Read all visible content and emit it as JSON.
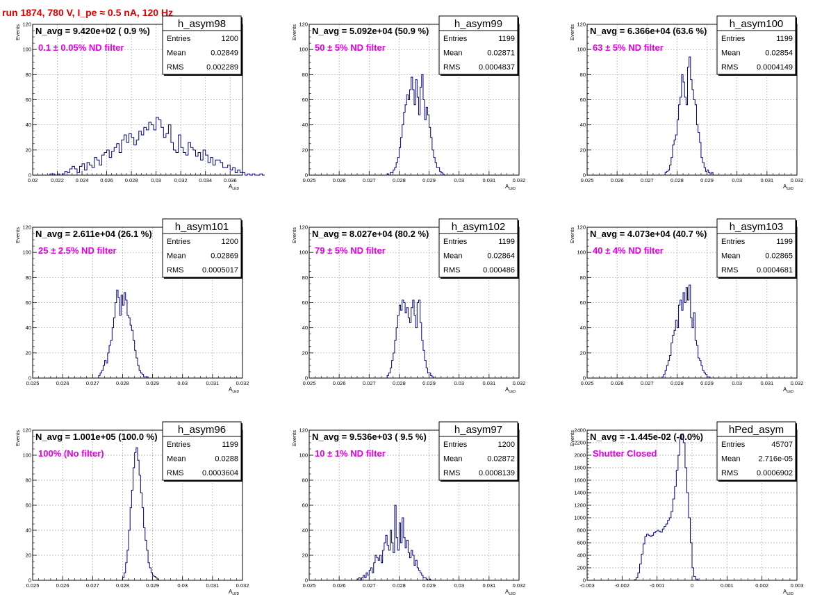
{
  "page": {
    "title": "run 1874,   780 V, I_pe ≈ 0.5 nA, 120 Hz"
  },
  "colors": {
    "histogram": "#000080",
    "annotation": "#e000e0",
    "title": "#e00000",
    "grid": "#aaaaaa",
    "axis": "#000000"
  },
  "chart_data": [
    {
      "type": "bar",
      "name": "h_asym98",
      "ylabel": "Events",
      "xlabel": "A",
      "xlabel_sub": "LED",
      "xlim": [
        0.02,
        0.037
      ],
      "ylim": [
        0,
        120
      ],
      "xticks": [
        0.02,
        0.022,
        0.024,
        0.026,
        0.028,
        0.03,
        0.032,
        0.034,
        0.036
      ],
      "xtick_labels": [
        "0.02",
        "0.022",
        "0.024",
        "0.026",
        "0.028",
        "0.03",
        "0.032",
        "0.034",
        "0.036"
      ],
      "yticks": [
        0,
        20,
        40,
        60,
        80,
        100,
        120
      ],
      "ytick_labels": [
        "0",
        "20",
        "40",
        "60",
        "80",
        "100",
        "120"
      ],
      "header": "N_avg = 9.420e+02 ( 0.9 %)",
      "annotation": "0.1 ± 0.05% ND filter",
      "stats": {
        "title": "h_asym98",
        "rows": [
          [
            "Entries",
            "1200"
          ],
          [
            "Mean",
            "0.02849"
          ],
          [
            "RMS",
            "0.002289"
          ]
        ]
      },
      "bins": {
        "x0": 0.0214,
        "w": 0.0002,
        "counts": [
          1,
          1,
          0,
          1,
          0,
          1,
          3,
          2,
          5,
          7,
          5,
          2,
          7,
          9,
          4,
          10,
          8,
          6,
          14,
          12,
          8,
          16,
          18,
          20,
          14,
          19,
          22,
          25,
          18,
          28,
          32,
          26,
          33,
          30,
          24,
          28,
          35,
          32,
          38,
          36,
          42,
          40,
          36,
          46,
          44,
          38,
          30,
          33,
          40,
          26,
          20,
          18,
          32,
          22,
          18,
          16,
          26,
          22,
          20,
          15,
          18,
          12,
          20,
          16,
          10,
          14,
          8,
          12,
          12,
          10,
          6,
          6,
          8,
          4,
          6,
          2,
          4,
          2,
          2,
          0,
          1,
          0,
          1,
          0,
          0,
          1,
          0
        ]
      }
    },
    {
      "type": "bar",
      "name": "h_asym99",
      "ylabel": "Events",
      "xlabel": "A",
      "xlabel_sub": "LED",
      "xlim": [
        0.025,
        0.032
      ],
      "ylim": [
        0,
        120
      ],
      "xticks": [
        0.025,
        0.026,
        0.027,
        0.028,
        0.029,
        0.03,
        0.031,
        0.032
      ],
      "xtick_labels": [
        "0.025",
        "0.026",
        "0.027",
        "0.028",
        "0.029",
        "0.03",
        "0.031",
        "0.032"
      ],
      "yticks": [
        0,
        20,
        40,
        60,
        80,
        100,
        120
      ],
      "ytick_labels": [
        "0",
        "20",
        "40",
        "60",
        "80",
        "100",
        "120"
      ],
      "header": "N_avg = 5.092e+04 (50.9 %)",
      "annotation": "50 ± 5% ND filter",
      "stats": {
        "title": "h_asym99",
        "rows": [
          [
            "Entries",
            "1199"
          ],
          [
            "Mean",
            "0.02871"
          ],
          [
            "RMS",
            "0.0004837"
          ]
        ]
      },
      "bins": {
        "x0": 0.0276,
        "w": 5e-05,
        "counts": [
          1,
          0,
          2,
          2,
          4,
          6,
          10,
          14,
          22,
          30,
          40,
          50,
          56,
          64,
          60,
          68,
          78,
          68,
          56,
          76,
          62,
          48,
          70,
          80,
          60,
          44,
          54,
          48,
          38,
          30,
          20,
          14,
          10,
          6,
          6,
          3,
          2,
          1
        ]
      }
    },
    {
      "type": "bar",
      "name": "h_asym100",
      "ylabel": "Events",
      "xlabel": "A",
      "xlabel_sub": "LED",
      "xlim": [
        0.025,
        0.032
      ],
      "ylim": [
        0,
        120
      ],
      "xticks": [
        0.025,
        0.026,
        0.027,
        0.028,
        0.029,
        0.03,
        0.031,
        0.032
      ],
      "xtick_labels": [
        "0.025",
        "0.026",
        "0.027",
        "0.028",
        "0.029",
        "0.03",
        "0.031",
        "0.032"
      ],
      "yticks": [
        0,
        20,
        40,
        60,
        80,
        100,
        120
      ],
      "ytick_labels": [
        "0",
        "20",
        "40",
        "60",
        "80",
        "100",
        "120"
      ],
      "header": "N_avg = 6.366e+04 (63.6 %)",
      "annotation": "63 ± 5% ND filter",
      "stats": {
        "title": "h_asym100",
        "rows": [
          [
            "Entries",
            "1199"
          ],
          [
            "Mean",
            "0.02854"
          ],
          [
            "RMS",
            "0.0004149"
          ]
        ]
      },
      "bins": {
        "x0": 0.0276,
        "w": 5e-05,
        "counts": [
          2,
          3,
          4,
          8,
          14,
          24,
          28,
          32,
          44,
          56,
          62,
          80,
          74,
          62,
          56,
          86,
          94,
          76,
          68,
          60,
          56,
          40,
          34,
          26,
          14,
          10,
          6,
          3,
          4,
          2,
          1,
          2
        ]
      }
    },
    {
      "type": "bar",
      "name": "h_asym101",
      "ylabel": "Events",
      "xlabel": "A",
      "xlabel_sub": "LED",
      "xlim": [
        0.025,
        0.032
      ],
      "ylim": [
        0,
        120
      ],
      "xticks": [
        0.025,
        0.026,
        0.027,
        0.028,
        0.029,
        0.03,
        0.031,
        0.032
      ],
      "xtick_labels": [
        "0.025",
        "0.026",
        "0.027",
        "0.028",
        "0.029",
        "0.03",
        "0.031",
        "0.032"
      ],
      "yticks": [
        0,
        20,
        40,
        60,
        80,
        100,
        120
      ],
      "ytick_labels": [
        "0",
        "20",
        "40",
        "60",
        "80",
        "100",
        "120"
      ],
      "header": "N_avg = 2.611e+04 (26.1 %)",
      "annotation": "25 ± 2.5% ND filter",
      "stats": {
        "title": "h_asym101",
        "rows": [
          [
            "Entries",
            "1200"
          ],
          [
            "Mean",
            "0.02869"
          ],
          [
            "RMS",
            "0.0005017"
          ]
        ]
      },
      "bins": {
        "x0": 0.0272,
        "w": 5e-05,
        "counts": [
          2,
          4,
          6,
          10,
          14,
          12,
          20,
          26,
          30,
          40,
          48,
          60,
          70,
          64,
          50,
          66,
          58,
          68,
          62,
          50,
          48,
          42,
          38,
          30,
          22,
          16,
          10,
          6,
          4,
          3,
          1,
          1,
          1
        ]
      }
    },
    {
      "type": "bar",
      "name": "h_asym102",
      "ylabel": "Events",
      "xlabel": "A",
      "xlabel_sub": "LED",
      "xlim": [
        0.025,
        0.032
      ],
      "ylim": [
        0,
        120
      ],
      "xticks": [
        0.025,
        0.026,
        0.027,
        0.028,
        0.029,
        0.03,
        0.031,
        0.032
      ],
      "xtick_labels": [
        "0.025",
        "0.026",
        "0.027",
        "0.028",
        "0.029",
        "0.03",
        "0.031",
        "0.032"
      ],
      "yticks": [
        0,
        20,
        40,
        60,
        80,
        100,
        120
      ],
      "ytick_labels": [
        "0",
        "20",
        "40",
        "60",
        "80",
        "100",
        "120"
      ],
      "header": "N_avg = 8.027e+04 (80.2 %)",
      "annotation": "79 ± 5% ND filter",
      "stats": {
        "title": "h_asym102",
        "rows": [
          [
            "Entries",
            "1199"
          ],
          [
            "Mean",
            "0.02864"
          ],
          [
            "RMS",
            "0.000486"
          ]
        ]
      },
      "bins": {
        "x0": 0.0276,
        "w": 5e-05,
        "counts": [
          2,
          4,
          8,
          14,
          20,
          30,
          40,
          50,
          58,
          54,
          62,
          60,
          52,
          56,
          48,
          44,
          56,
          62,
          50,
          40,
          60,
          62,
          44,
          30,
          22,
          14,
          8,
          4,
          4,
          2,
          1
        ]
      }
    },
    {
      "type": "bar",
      "name": "h_asym103",
      "ylabel": "Events",
      "xlabel": "A",
      "xlabel_sub": "LED",
      "xlim": [
        0.025,
        0.032
      ],
      "ylim": [
        0,
        120
      ],
      "xticks": [
        0.025,
        0.026,
        0.027,
        0.028,
        0.029,
        0.03,
        0.031,
        0.032
      ],
      "xtick_labels": [
        "0.025",
        "0.026",
        "0.027",
        "0.028",
        "0.029",
        "0.03",
        "0.031",
        "0.032"
      ],
      "yticks": [
        0,
        20,
        40,
        60,
        80,
        100,
        120
      ],
      "ytick_labels": [
        "0",
        "20",
        "40",
        "60",
        "80",
        "100",
        "120"
      ],
      "header": "N_avg = 4.073e+04 (40.7 %)",
      "annotation": "40 ± 4% ND filter",
      "stats": {
        "title": "h_asym103",
        "rows": [
          [
            "Entries",
            "1199"
          ],
          [
            "Mean",
            "0.02865"
          ],
          [
            "RMS",
            "0.0004681"
          ]
        ]
      },
      "bins": {
        "x0": 0.0275,
        "w": 5e-05,
        "counts": [
          1,
          3,
          6,
          10,
          14,
          18,
          28,
          34,
          38,
          46,
          40,
          58,
          62,
          54,
          68,
          60,
          72,
          62,
          74,
          48,
          40,
          52,
          30,
          26,
          16,
          14,
          10,
          6,
          4,
          3,
          1,
          1
        ]
      }
    },
    {
      "type": "bar",
      "name": "h_asym96",
      "ylabel": "Events",
      "xlabel": "A",
      "xlabel_sub": "LED",
      "xlim": [
        0.025,
        0.032
      ],
      "ylim": [
        0,
        120
      ],
      "xticks": [
        0.025,
        0.026,
        0.027,
        0.028,
        0.029,
        0.03,
        0.031,
        0.032
      ],
      "xtick_labels": [
        "0.025",
        "0.026",
        "0.027",
        "0.028",
        "0.029",
        "0.03",
        "0.031",
        "0.032"
      ],
      "yticks": [
        0,
        20,
        40,
        60,
        80,
        100,
        120
      ],
      "ytick_labels": [
        "0",
        "20",
        "40",
        "60",
        "80",
        "100",
        "120"
      ],
      "header": "N_avg = 1.001e+05 (100.0 %)",
      "annotation": "100% (No filter)",
      "stats": {
        "title": "h_asym96",
        "rows": [
          [
            "Entries",
            "1199"
          ],
          [
            "Mean",
            "0.0288"
          ],
          [
            "RMS",
            "0.0003604"
          ]
        ]
      },
      "bins": {
        "x0": 0.028,
        "w": 5e-05,
        "counts": [
          2,
          6,
          14,
          24,
          40,
          58,
          72,
          90,
          102,
          106,
          96,
          84,
          70,
          58,
          42,
          32,
          24,
          14,
          10,
          6,
          4,
          3,
          2,
          1
        ]
      }
    },
    {
      "type": "bar",
      "name": "h_asym97",
      "ylabel": "Events",
      "xlabel": "A",
      "xlabel_sub": "LED",
      "xlim": [
        0.025,
        0.032
      ],
      "ylim": [
        0,
        120
      ],
      "xticks": [
        0.025,
        0.026,
        0.027,
        0.028,
        0.029,
        0.03,
        0.031,
        0.032
      ],
      "xtick_labels": [
        "0.025",
        "0.026",
        "0.027",
        "0.028",
        "0.029",
        "0.03",
        "0.031",
        "0.032"
      ],
      "yticks": [
        0,
        20,
        40,
        60,
        80,
        100,
        120
      ],
      "ytick_labels": [
        "0",
        "20",
        "40",
        "60",
        "80",
        "100",
        "120"
      ],
      "header": "N_avg = 9.536e+03 ( 9.5 %)",
      "annotation": "10 ± 1% ND filter",
      "stats": {
        "title": "h_asym97",
        "rows": [
          [
            "Entries",
            "1200"
          ],
          [
            "Mean",
            "0.02872"
          ],
          [
            "RMS",
            "0.0008139"
          ]
        ]
      },
      "bins": {
        "x0": 0.0266,
        "w": 5e-05,
        "counts": [
          1,
          2,
          0,
          2,
          4,
          2,
          6,
          4,
          8,
          10,
          6,
          14,
          20,
          18,
          16,
          20,
          14,
          24,
          30,
          36,
          28,
          24,
          40,
          30,
          22,
          60,
          34,
          24,
          46,
          30,
          50,
          34,
          26,
          32,
          22,
          18,
          24,
          20,
          12,
          16,
          10,
          8,
          6,
          4,
          2,
          2,
          1,
          0,
          1
        ]
      }
    },
    {
      "type": "bar",
      "name": "hPed_asym",
      "ylabel": "Events",
      "xlabel": "A",
      "xlabel_sub": "LED",
      "xlim": [
        -0.003,
        0.003
      ],
      "ylim": [
        0,
        2400
      ],
      "xticks": [
        -0.003,
        -0.002,
        -0.001,
        0,
        0.001,
        0.002,
        0.003
      ],
      "xtick_labels": [
        "-0.003",
        "-0.002",
        "-0.001",
        "0",
        "0.001",
        "0.002",
        "0.003"
      ],
      "yticks": [
        0,
        200,
        400,
        600,
        800,
        1000,
        1200,
        1400,
        1600,
        1800,
        2000,
        2200,
        2400
      ],
      "ytick_labels": [
        "0",
        "200",
        "400",
        "600",
        "800",
        "1000",
        "1200",
        "1400",
        "1600",
        "1800",
        "2000",
        "2200",
        "2400"
      ],
      "header": "N_avg = -1.445e-02 (-0.0%)",
      "annotation": "Shutter Closed",
      "stats": {
        "title": "hPed_asym",
        "rows": [
          [
            "Entries",
            "45707"
          ],
          [
            "Mean",
            "2.716e-05"
          ],
          [
            "RMS",
            "0.0006902"
          ]
        ]
      },
      "bins": {
        "x0": -0.00165,
        "w": 5e-05,
        "counts": [
          10,
          40,
          120,
          260,
          420,
          580,
          700,
          740,
          720,
          700,
          720,
          760,
          780,
          800,
          780,
          770,
          820,
          860,
          900,
          960,
          1000,
          1100,
          1300,
          1500,
          1760,
          2000,
          2260,
          2340,
          2200,
          1800,
          1400,
          1000,
          600,
          200,
          60,
          20,
          5
        ]
      }
    }
  ]
}
